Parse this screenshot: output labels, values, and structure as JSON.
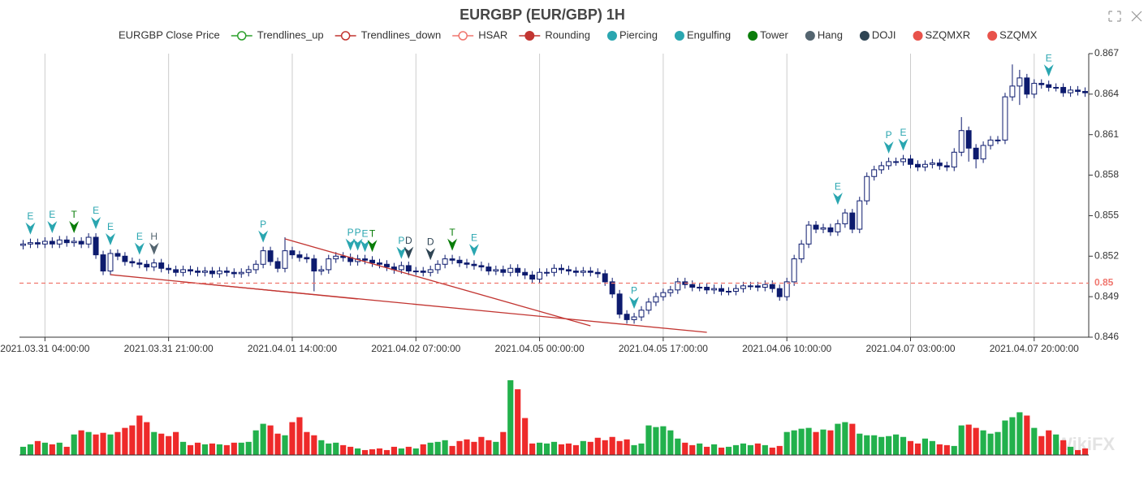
{
  "chart_data": {
    "type": "candlestick",
    "title": "EURGBP (EUR/GBP) 1H",
    "watermark": "WikiFX",
    "categories": [
      null,
      null,
      null,
      "2021.03.31 04:00:00",
      null,
      null,
      null,
      null,
      null,
      null,
      null,
      null,
      null,
      null,
      null,
      null,
      null,
      null,
      null,
      null,
      "2021.03.31 21:00:00",
      null,
      null,
      null,
      null,
      null,
      null,
      null,
      null,
      null,
      null,
      null,
      null,
      null,
      null,
      null,
      null,
      "2021.04.01 14:00:00",
      null,
      null,
      null,
      null,
      null,
      null,
      null,
      null,
      null,
      null,
      null,
      null,
      null,
      null,
      null,
      null,
      "2021.04.02 07:00:00",
      null,
      null,
      null,
      null,
      null,
      null,
      null,
      null,
      null,
      null,
      null,
      null,
      null,
      null,
      null,
      null,
      "2021.04.05 00:00:00",
      null,
      null,
      null,
      null,
      null,
      null,
      null,
      null,
      null,
      null,
      null,
      null,
      null,
      null,
      null,
      null,
      "2021.04.05 17:00:00",
      null,
      null,
      null,
      null,
      null,
      null,
      null,
      null,
      null,
      null,
      null,
      null,
      null,
      null,
      null,
      null,
      "2021.04.06 10:00:00",
      null,
      null,
      null,
      null,
      null,
      null,
      null,
      null,
      null,
      null,
      null,
      null,
      null,
      null,
      null,
      null,
      "2021.04.07 03:00:00",
      null,
      null,
      null,
      null,
      null,
      null,
      null,
      null,
      null,
      null,
      null,
      null,
      null,
      null,
      null,
      null,
      "2021.04.07 20:00:00",
      null,
      null,
      null,
      null,
      null,
      null,
      null
    ],
    "ylim": [
      0.846,
      0.867
    ],
    "yticks": [
      0.846,
      0.849,
      0.852,
      0.855,
      0.858,
      0.861,
      0.864,
      0.867
    ],
    "grid": true,
    "up_color": "#ffffff",
    "down_color": "#0d1b6e",
    "series": [
      {
        "name": "EURGBP Close Price",
        "color": "#0d1b6e",
        "open": [
          0.8528,
          0.8529,
          0.853,
          0.8529,
          0.8531,
          0.8529,
          0.8532,
          0.853,
          0.8531,
          0.8529,
          0.8534,
          0.8521,
          0.8509,
          0.8522,
          0.852,
          0.8516,
          0.8515,
          0.8514,
          0.8512,
          0.8515,
          0.8511,
          0.851,
          0.8508,
          0.851,
          0.8509,
          0.8508,
          0.8509,
          0.8507,
          0.8509,
          0.8508,
          0.8507,
          0.8508,
          0.851,
          0.8514,
          0.8524,
          0.8516,
          0.8511,
          0.8524,
          0.8521,
          0.8519,
          0.8518,
          0.8509,
          0.851,
          0.8518,
          0.852,
          0.8519,
          0.8516,
          0.8518,
          0.8517,
          0.8515,
          0.8514,
          0.8512,
          0.851,
          0.8513,
          0.8509,
          0.8509,
          0.8508,
          0.851,
          0.8514,
          0.8518,
          0.8517,
          0.8515,
          0.8514,
          0.8513,
          0.8512,
          0.8509,
          0.851,
          0.8508,
          0.8511,
          0.8508,
          0.8506,
          0.8503,
          0.8508,
          0.8508,
          0.8511,
          0.851,
          0.8509,
          0.8508,
          0.8509,
          0.8508,
          0.8507,
          0.8501,
          0.8492,
          0.8477,
          0.8473,
          0.8475,
          0.848,
          0.8486,
          0.849,
          0.8493,
          0.8495,
          0.8501,
          0.8499,
          0.8497,
          0.8497,
          0.8495,
          0.8496,
          0.8494,
          0.8494,
          0.8496,
          0.8498,
          0.8498,
          0.8497,
          0.8499,
          0.8496,
          0.849,
          0.8501,
          0.8518,
          0.8529,
          0.8543,
          0.854,
          0.8541,
          0.8538,
          0.8544,
          0.8552,
          0.854,
          0.8561,
          0.8579,
          0.8584,
          0.8587,
          0.859,
          0.859,
          0.8592,
          0.8588,
          0.8586,
          0.8588,
          0.8589,
          0.8587,
          0.8586,
          0.8597,
          0.8613,
          0.86,
          0.8592,
          0.8602,
          0.8606,
          0.8606,
          0.8638,
          0.8646,
          0.8652,
          0.864,
          0.8648,
          0.8647,
          0.8645,
          0.8645,
          0.8641,
          0.8643,
          0.8642
        ],
        "high": [
          0.8532,
          0.8533,
          0.8533,
          0.8534,
          0.8534,
          0.8535,
          0.8535,
          0.8534,
          0.8534,
          0.8537,
          0.8537,
          0.8524,
          0.8525,
          0.8525,
          0.8523,
          0.8519,
          0.8518,
          0.8517,
          0.8518,
          0.8518,
          0.8514,
          0.8513,
          0.8513,
          0.8513,
          0.8512,
          0.8512,
          0.8512,
          0.8512,
          0.8512,
          0.8511,
          0.8511,
          0.8513,
          0.8517,
          0.8527,
          0.8527,
          0.8519,
          0.8534,
          0.8527,
          0.8524,
          0.8522,
          0.8521,
          0.8513,
          0.8521,
          0.8523,
          0.8523,
          0.8522,
          0.8521,
          0.8521,
          0.852,
          0.8518,
          0.8517,
          0.8515,
          0.8516,
          0.8516,
          0.8512,
          0.8512,
          0.8513,
          0.8517,
          0.8521,
          0.8521,
          0.852,
          0.8518,
          0.8517,
          0.8516,
          0.8515,
          0.8513,
          0.8513,
          0.8514,
          0.8514,
          0.8511,
          0.8509,
          0.8511,
          0.8511,
          0.8514,
          0.8514,
          0.8513,
          0.8512,
          0.8512,
          0.8512,
          0.8511,
          0.851,
          0.8504,
          0.8495,
          0.848,
          0.8478,
          0.8483,
          0.8489,
          0.8493,
          0.8496,
          0.8498,
          0.8504,
          0.8504,
          0.8502,
          0.85,
          0.85,
          0.8499,
          0.8499,
          0.8497,
          0.8499,
          0.8501,
          0.8501,
          0.8501,
          0.8502,
          0.8502,
          0.8499,
          0.8504,
          0.8521,
          0.8532,
          0.8546,
          0.8546,
          0.8544,
          0.8544,
          0.8547,
          0.8555,
          0.8555,
          0.8564,
          0.8582,
          0.8587,
          0.859,
          0.8593,
          0.8593,
          0.8595,
          0.8595,
          0.8591,
          0.8591,
          0.8592,
          0.8592,
          0.859,
          0.86,
          0.8623,
          0.8616,
          0.8603,
          0.8605,
          0.8609,
          0.8609,
          0.8641,
          0.8662,
          0.8658,
          0.8655,
          0.8651,
          0.8651,
          0.865,
          0.8648,
          0.8648,
          0.8646,
          0.8646,
          0.8645
        ],
        "low": [
          0.8525,
          0.8526,
          0.8526,
          0.8526,
          0.8526,
          0.8526,
          0.8527,
          0.8527,
          0.8526,
          0.8526,
          0.8518,
          0.8506,
          0.8506,
          0.8517,
          0.8513,
          0.8512,
          0.8511,
          0.8509,
          0.8509,
          0.8508,
          0.8507,
          0.8505,
          0.8505,
          0.8506,
          0.8505,
          0.8505,
          0.8504,
          0.8504,
          0.8505,
          0.8504,
          0.8504,
          0.8505,
          0.8507,
          0.8511,
          0.8513,
          0.8508,
          0.8508,
          0.8518,
          0.8516,
          0.8515,
          0.8494,
          0.8506,
          0.8507,
          0.8515,
          0.8516,
          0.8513,
          0.8513,
          0.8514,
          0.8512,
          0.8511,
          0.8509,
          0.8507,
          0.8507,
          0.8506,
          0.8506,
          0.8505,
          0.8505,
          0.8507,
          0.8511,
          0.8514,
          0.8512,
          0.8511,
          0.851,
          0.8509,
          0.8506,
          0.8506,
          0.8505,
          0.8505,
          0.8505,
          0.8503,
          0.85,
          0.85,
          0.8505,
          0.8505,
          0.8507,
          0.8506,
          0.8505,
          0.8505,
          0.8505,
          0.8504,
          0.8498,
          0.8489,
          0.8474,
          0.847,
          0.847,
          0.8472,
          0.8477,
          0.8483,
          0.8487,
          0.849,
          0.8492,
          0.8496,
          0.8494,
          0.8494,
          0.8492,
          0.8492,
          0.8491,
          0.8491,
          0.8491,
          0.8493,
          0.8495,
          0.8494,
          0.8494,
          0.8493,
          0.8487,
          0.8487,
          0.8498,
          0.8515,
          0.8526,
          0.8537,
          0.8537,
          0.8535,
          0.8535,
          0.8541,
          0.8537,
          0.8537,
          0.8558,
          0.8576,
          0.8581,
          0.8584,
          0.8587,
          0.8587,
          0.8585,
          0.8583,
          0.8583,
          0.8585,
          0.8584,
          0.8583,
          0.8583,
          0.8594,
          0.859,
          0.8585,
          0.8589,
          0.8599,
          0.8603,
          0.8603,
          0.8635,
          0.8632,
          0.8637,
          0.8637,
          0.8644,
          0.8642,
          0.8642,
          0.8638,
          0.8638,
          0.8639,
          0.8638
        ],
        "close": [
          0.8529,
          0.853,
          0.8529,
          0.8531,
          0.8529,
          0.8532,
          0.853,
          0.8531,
          0.8529,
          0.8534,
          0.8521,
          0.8509,
          0.8522,
          0.852,
          0.8516,
          0.8515,
          0.8514,
          0.8512,
          0.8515,
          0.8511,
          0.851,
          0.8508,
          0.851,
          0.8509,
          0.8508,
          0.8509,
          0.8507,
          0.8509,
          0.8508,
          0.8507,
          0.8508,
          0.851,
          0.8514,
          0.8524,
          0.8516,
          0.8511,
          0.8524,
          0.8521,
          0.8519,
          0.8518,
          0.8509,
          0.851,
          0.8518,
          0.852,
          0.8519,
          0.8516,
          0.8518,
          0.8517,
          0.8515,
          0.8514,
          0.8512,
          0.851,
          0.8513,
          0.8509,
          0.8509,
          0.8508,
          0.851,
          0.8514,
          0.8518,
          0.8517,
          0.8515,
          0.8514,
          0.8513,
          0.8512,
          0.8509,
          0.851,
          0.8508,
          0.8511,
          0.8508,
          0.8506,
          0.8503,
          0.8508,
          0.8508,
          0.8511,
          0.851,
          0.8509,
          0.8508,
          0.8509,
          0.8508,
          0.8507,
          0.8501,
          0.8492,
          0.8477,
          0.8473,
          0.8475,
          0.848,
          0.8486,
          0.849,
          0.8493,
          0.8495,
          0.8501,
          0.8499,
          0.8497,
          0.8497,
          0.8495,
          0.8496,
          0.8494,
          0.8494,
          0.8496,
          0.8498,
          0.8498,
          0.8497,
          0.8499,
          0.8496,
          0.849,
          0.8501,
          0.8518,
          0.8529,
          0.8543,
          0.854,
          0.8541,
          0.8538,
          0.8544,
          0.8552,
          0.854,
          0.8561,
          0.8579,
          0.8584,
          0.8587,
          0.859,
          0.859,
          0.8592,
          0.8588,
          0.8586,
          0.8588,
          0.8589,
          0.8587,
          0.8586,
          0.8597,
          0.8613,
          0.86,
          0.8592,
          0.8602,
          0.8606,
          0.8606,
          0.8638,
          0.8646,
          0.8652,
          0.864,
          0.8648,
          0.8647,
          0.8645,
          0.8645,
          0.8641,
          0.8643,
          0.8642,
          0.8641
        ]
      },
      {
        "name": "Trendlines_up",
        "color": "#2ca02c",
        "symbol": "line-hollow"
      },
      {
        "name": "Trendlines_down",
        "color": "#c23531",
        "symbol": "line-hollow",
        "lines": [
          {
            "x": [
              12,
              46
            ],
            "values": [
              0.85063,
              0.84883
            ]
          },
          {
            "x": [
              22,
              94
            ],
            "values": [
              0.85009,
              0.84636
            ]
          },
          {
            "x": [
              36,
              78
            ],
            "values": [
              0.85328,
              0.84684
            ]
          }
        ]
      },
      {
        "name": "HSAR",
        "color": "#f0766e",
        "symbol": "line-hollow",
        "level": 0.85
      },
      {
        "name": "Rounding",
        "color": "#c23531",
        "symbol": "line-dot"
      },
      {
        "name": "Piercing",
        "color": "#2aa6b0",
        "symbol": "dot",
        "label": "P",
        "x": [
          33,
          45,
          46,
          52,
          84,
          119
        ],
        "values": [
          0.853,
          0.8524,
          0.8524,
          0.8518,
          0.8481,
          0.8596
        ]
      },
      {
        "name": "Engulfing",
        "color": "#2aa6b0",
        "symbol": "dot",
        "label": "E",
        "x": [
          1,
          4,
          10,
          12,
          16,
          47,
          62,
          112,
          121,
          141
        ],
        "values": [
          0.8536,
          0.8537,
          0.854,
          0.8528,
          0.8521,
          0.8523,
          0.852,
          0.8558,
          0.8598,
          0.8653
        ]
      },
      {
        "name": "Tower",
        "color": "#0a7d0a",
        "symbol": "dot",
        "label": "T",
        "x": [
          7,
          48,
          59
        ],
        "values": [
          0.8537,
          0.8523,
          0.8524
        ]
      },
      {
        "name": "Hang",
        "color": "#546570",
        "symbol": "dot",
        "label": "H",
        "x": [
          18
        ],
        "values": [
          0.8521
        ]
      },
      {
        "name": "DOJI",
        "color": "#2f4554",
        "symbol": "dot",
        "label": "D",
        "x": [
          53,
          56
        ],
        "values": [
          0.8518,
          0.8517
        ]
      },
      {
        "name": "SZQMXR",
        "color": "#e8524a",
        "symbol": "dot"
      },
      {
        "name": "SZQMX",
        "color": "#e8524a",
        "symbol": "dot"
      }
    ],
    "volume": {
      "up_color": "#22b14c",
      "down_color": "#ee2a2a",
      "values": [
        10,
        13,
        17,
        15,
        13,
        15,
        10,
        25,
        30,
        28,
        25,
        27,
        25,
        28,
        33,
        36,
        48,
        40,
        28,
        26,
        23,
        28,
        16,
        12,
        15,
        13,
        14,
        13,
        12,
        15,
        15,
        16,
        30,
        38,
        36,
        26,
        24,
        40,
        46,
        28,
        24,
        18,
        14,
        15,
        12,
        10,
        8,
        6,
        7,
        8,
        6,
        10,
        8,
        10,
        8,
        13,
        15,
        16,
        18,
        11,
        17,
        19,
        16,
        22,
        18,
        16,
        28,
        91,
        80,
        45,
        14,
        15,
        14,
        16,
        13,
        14,
        12,
        17,
        16,
        21,
        18,
        22,
        17,
        19,
        12,
        14,
        36,
        34,
        35,
        30,
        20,
        15,
        12,
        14,
        10,
        13,
        9,
        10,
        12,
        14,
        12,
        14,
        12,
        9,
        11,
        28,
        30,
        32,
        33,
        28,
        31,
        30,
        38,
        40,
        38,
        26,
        24,
        24,
        22,
        23,
        25,
        22,
        17,
        14,
        20,
        17,
        13,
        12,
        11,
        36,
        37,
        33,
        30,
        26,
        28,
        42,
        46,
        52,
        48,
        33,
        23,
        30,
        25,
        18,
        10,
        6,
        8
      ]
    }
  }
}
